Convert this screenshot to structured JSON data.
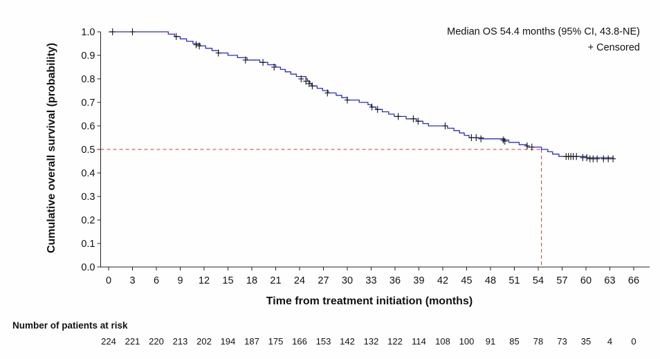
{
  "chart_data": {
    "type": "line",
    "title": "",
    "xlabel": "Time from treatment initiation (months)",
    "ylabel": "Cumulative overall survival (probability)",
    "xlim": [
      -1,
      68
    ],
    "ylim": [
      0,
      1.0
    ],
    "xticks": [
      "0",
      "3",
      "6",
      "9",
      "12",
      "15",
      "18",
      "21",
      "24",
      "27",
      "30",
      "33",
      "36",
      "39",
      "42",
      "45",
      "48",
      "51",
      "54",
      "57",
      "60",
      "63",
      "66"
    ],
    "yticks": [
      "0.0",
      "0.1",
      "0.2",
      "0.3",
      "0.4",
      "0.5",
      "0.6",
      "0.7",
      "0.8",
      "0.9",
      "1.0"
    ],
    "series": [
      {
        "name": "Overall survival",
        "color": "#2c2cc8",
        "style": "step",
        "points": [
          [
            0,
            1.0
          ],
          [
            7.5,
            0.99
          ],
          [
            8.3,
            0.98
          ],
          [
            9.0,
            0.97
          ],
          [
            9.8,
            0.96
          ],
          [
            10.6,
            0.95
          ],
          [
            11.5,
            0.94
          ],
          [
            12.2,
            0.93
          ],
          [
            13.0,
            0.92
          ],
          [
            13.8,
            0.91
          ],
          [
            15.0,
            0.9
          ],
          [
            16.2,
            0.89
          ],
          [
            17.4,
            0.88
          ],
          [
            19.0,
            0.87
          ],
          [
            20.0,
            0.86
          ],
          [
            21.0,
            0.85
          ],
          [
            21.6,
            0.84
          ],
          [
            22.2,
            0.83
          ],
          [
            22.9,
            0.82
          ],
          [
            23.6,
            0.81
          ],
          [
            24.8,
            0.8
          ],
          [
            25.0,
            0.79
          ],
          [
            25.3,
            0.78
          ],
          [
            25.5,
            0.77
          ],
          [
            26.2,
            0.76
          ],
          [
            26.9,
            0.75
          ],
          [
            27.6,
            0.74
          ],
          [
            28.6,
            0.73
          ],
          [
            29.3,
            0.72
          ],
          [
            30.0,
            0.71
          ],
          [
            31.5,
            0.7
          ],
          [
            32.6,
            0.69
          ],
          [
            33.0,
            0.68
          ],
          [
            33.6,
            0.67
          ],
          [
            34.4,
            0.66
          ],
          [
            35.2,
            0.65
          ],
          [
            35.9,
            0.64
          ],
          [
            37.4,
            0.63
          ],
          [
            38.7,
            0.62
          ],
          [
            39.5,
            0.61
          ],
          [
            40.2,
            0.6
          ],
          [
            42.6,
            0.59
          ],
          [
            43.4,
            0.58
          ],
          [
            44.1,
            0.57
          ],
          [
            44.7,
            0.56
          ],
          [
            45.3,
            0.55
          ],
          [
            47.1,
            0.545
          ],
          [
            49.7,
            0.54
          ],
          [
            50.3,
            0.53
          ],
          [
            51.6,
            0.52
          ],
          [
            52.6,
            0.51
          ],
          [
            54.4,
            0.5
          ],
          [
            55.2,
            0.49
          ],
          [
            55.8,
            0.48
          ],
          [
            56.6,
            0.47
          ],
          [
            60.1,
            0.465
          ],
          [
            63.5,
            0.465
          ]
        ],
        "censored": [
          [
            0.5,
            1.0
          ],
          [
            3.0,
            1.0
          ],
          [
            8.5,
            0.98
          ],
          [
            11.0,
            0.945
          ],
          [
            11.4,
            0.94
          ],
          [
            13.8,
            0.91
          ],
          [
            17.2,
            0.88
          ],
          [
            19.4,
            0.87
          ],
          [
            20.8,
            0.85
          ],
          [
            24.2,
            0.8
          ],
          [
            24.8,
            0.79
          ],
          [
            25.2,
            0.78
          ],
          [
            25.6,
            0.77
          ],
          [
            27.5,
            0.74
          ],
          [
            30.0,
            0.71
          ],
          [
            33.1,
            0.68
          ],
          [
            33.8,
            0.67
          ],
          [
            36.4,
            0.64
          ],
          [
            38.3,
            0.63
          ],
          [
            38.9,
            0.62
          ],
          [
            42.3,
            0.6
          ],
          [
            45.6,
            0.55
          ],
          [
            46.2,
            0.55
          ],
          [
            46.8,
            0.545
          ],
          [
            49.6,
            0.54
          ],
          [
            49.8,
            0.535
          ],
          [
            52.6,
            0.515
          ],
          [
            53.2,
            0.51
          ],
          [
            57.5,
            0.47
          ],
          [
            57.8,
            0.47
          ],
          [
            58.1,
            0.47
          ],
          [
            58.4,
            0.47
          ],
          [
            58.8,
            0.47
          ],
          [
            59.6,
            0.465
          ],
          [
            60.1,
            0.465
          ],
          [
            60.5,
            0.46
          ],
          [
            60.9,
            0.46
          ],
          [
            61.4,
            0.46
          ],
          [
            62.2,
            0.46
          ],
          [
            62.8,
            0.46
          ],
          [
            63.4,
            0.46
          ]
        ]
      }
    ],
    "reference_lines": {
      "horizontal_y": 0.5,
      "vertical_x": 54.4,
      "color": "#c83a3a",
      "style": "dashed"
    },
    "annotations": [
      "Median OS 54.4 months (95% CI, 43.8-NE)",
      "+ Censored"
    ],
    "legend_position": "top-right"
  },
  "risk_table": {
    "title": "Number of patients at risk",
    "values": [
      "224",
      "221",
      "220",
      "213",
      "202",
      "194",
      "187",
      "175",
      "166",
      "153",
      "142",
      "132",
      "122",
      "114",
      "108",
      "100",
      "91",
      "85",
      "78",
      "73",
      "35",
      "4",
      "0"
    ]
  }
}
